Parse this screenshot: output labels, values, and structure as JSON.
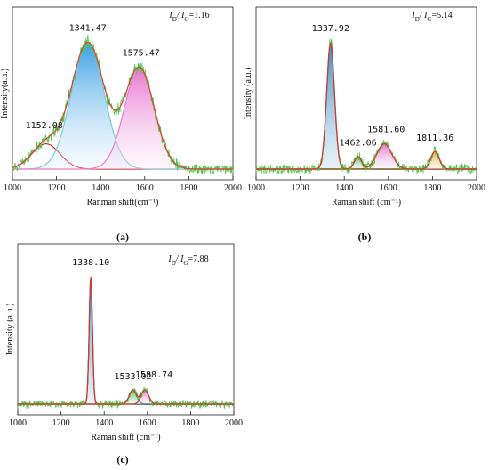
{
  "chart_data": [
    {
      "panel": "(a)",
      "type": "line",
      "xlabel": "Ranman shift(cm⁻¹)",
      "ylabel": "Intensity(a.u.)",
      "xlim": [
        1000,
        2000
      ],
      "xticks": [
        "1000",
        "1200",
        "1400",
        "1600",
        "1800",
        "2000"
      ],
      "ratio": {
        "prefix": "I",
        "sub1": "D",
        "sep": "/ I",
        "sub2": "G",
        "value": "=1.16"
      },
      "peaks": [
        {
          "label": "1152.08",
          "center": 1152.08,
          "height": 0.2,
          "fwhm": 150,
          "color": "#d62b2b",
          "fill": "none"
        },
        {
          "label": "1341.47",
          "center": 1341.47,
          "height": 1.0,
          "fwhm": 175,
          "color": "#7ec8e3",
          "fill": "#3aa6e0"
        },
        {
          "label": "1575.47",
          "center": 1575.47,
          "height": 0.8,
          "fwhm": 160,
          "color": "#f07ad0",
          "fill": "#e45fc8"
        }
      ],
      "baseline": 0.0,
      "noise": 0.035,
      "fit_color": "#e0403c",
      "raw_color": "#4cc84a",
      "base_color": "#a34cd6"
    },
    {
      "panel": "(b)",
      "type": "line",
      "xlabel": "Raman shift (cm⁻¹)",
      "ylabel": "Intensity (a.u.)",
      "xlim": [
        1000,
        2000
      ],
      "xticks": [
        "1000",
        "1200",
        "1400",
        "1600",
        "1800",
        "2000"
      ],
      "ratio": {
        "prefix": "I",
        "sub1": "D",
        "sep": "/ I",
        "sub2": "G",
        "value": "=5.14"
      },
      "peaks": [
        {
          "label": "1337.92",
          "center": 1337.92,
          "height": 1.0,
          "fwhm": 42,
          "color": "#2a4d5c",
          "fill": "#3a8fc4"
        },
        {
          "label": "1462.06",
          "center": 1462.06,
          "height": 0.1,
          "fwhm": 38,
          "color": "#2a4d5c",
          "fill": "#3fae6a"
        },
        {
          "label": "1581.60",
          "center": 1581.6,
          "height": 0.2,
          "fwhm": 80,
          "color": "#c0392b",
          "fill": "#e45fc8"
        },
        {
          "label": "1811.36",
          "center": 1811.36,
          "height": 0.14,
          "fwhm": 45,
          "color": "#8a5a12",
          "fill": "#e0a23a"
        }
      ],
      "baseline": 0.0,
      "noise": 0.03,
      "fit_color": "#d33",
      "raw_color": "#4cc84a",
      "base_color": "#a34cd6"
    },
    {
      "panel": "(c)",
      "type": "line",
      "xlabel": "Raman shift (cm⁻¹)",
      "ylabel": "Intensity (a.u.)",
      "xlim": [
        1000,
        2000
      ],
      "xticks": [
        "1000",
        "1200",
        "1400",
        "1600",
        "1800",
        "2000"
      ],
      "ratio": {
        "prefix": "I",
        "sub1": "D",
        "sep": "/ I",
        "sub2": "G",
        "value": "=7.88"
      },
      "peaks": [
        {
          "label": "1338.10",
          "center": 1338.1,
          "height": 1.0,
          "fwhm": 18,
          "color": "#1f3f4d",
          "fill": "#2f8a8a"
        },
        {
          "label": "1533.02",
          "center": 1533.02,
          "height": 0.11,
          "fwhm": 40,
          "color": "#1f3f4d",
          "fill": "#3fae6a"
        },
        {
          "label": "1588.74",
          "center": 1588.74,
          "height": 0.11,
          "fwhm": 40,
          "color": "#c0392b",
          "fill": "#e45fc8"
        }
      ],
      "baseline": 0.0,
      "noise": 0.025,
      "fit_color": "#d33",
      "raw_color": "#4cc84a",
      "base_color": "#a34cd6"
    }
  ]
}
